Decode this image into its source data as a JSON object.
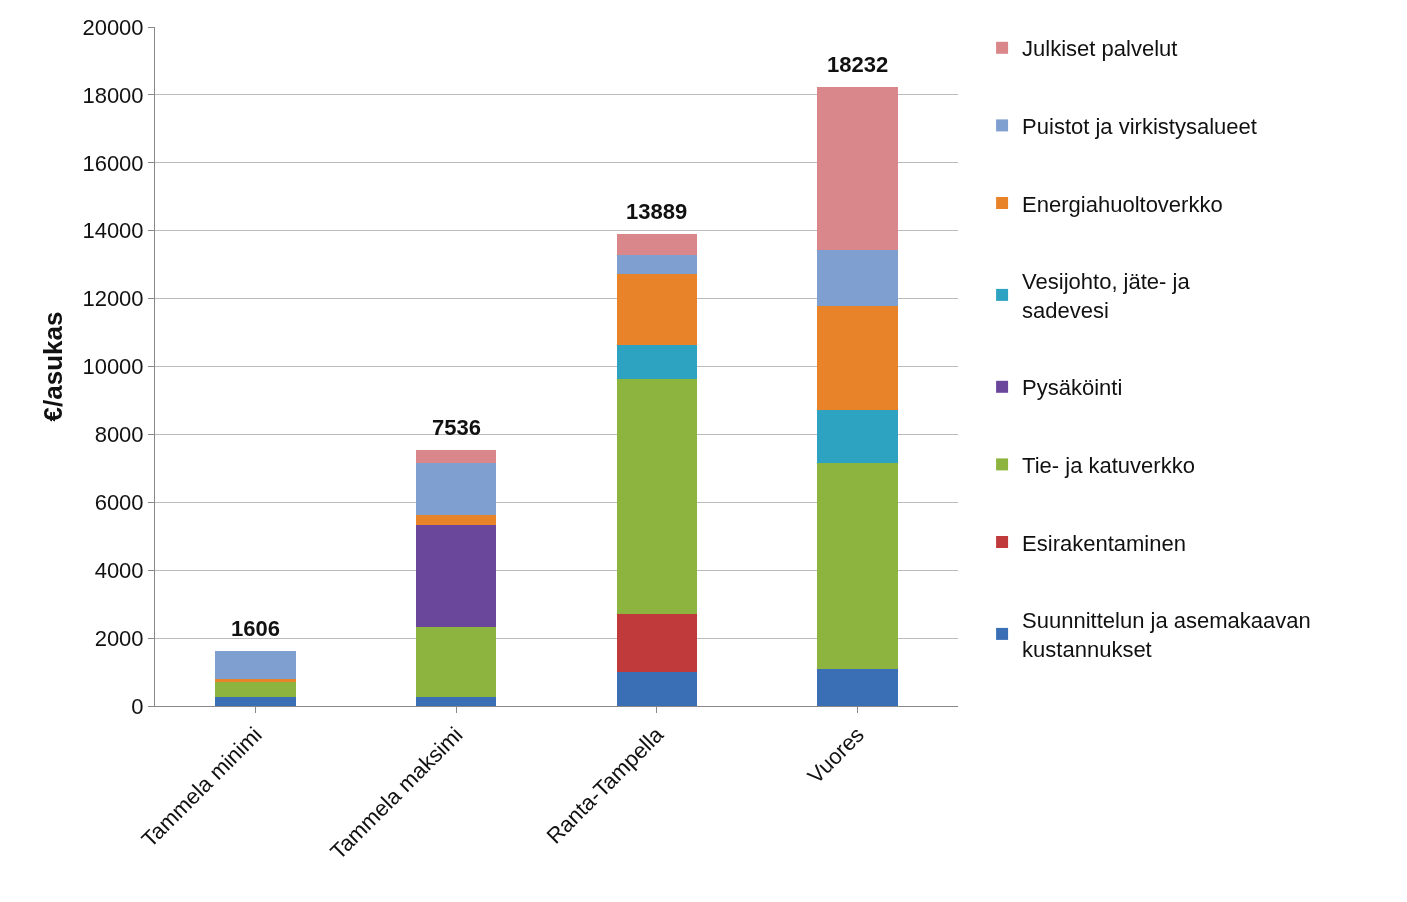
{
  "chart_data": {
    "type": "bar",
    "stacked": true,
    "ylabel": "€/asukas",
    "categories": [
      "Tammela minimi",
      "Tammela maksimi",
      "Ranta-Tampella",
      "Vuores"
    ],
    "series": [
      {
        "name": "Suunnittelun ja asemakaavan kustannukset",
        "color": "#3a6fb5",
        "values": [
          270,
          270,
          1000,
          1100
        ]
      },
      {
        "name": "Esirakentaminen",
        "color": "#c0393b",
        "values": [
          0,
          0,
          1700,
          0
        ]
      },
      {
        "name": "Tie- ja katuverkko",
        "color": "#8db43e",
        "values": [
          450,
          2047,
          6920,
          6070
        ]
      },
      {
        "name": "Pysäköinti",
        "color": "#6a479a",
        "values": [
          0,
          3020,
          0,
          0
        ]
      },
      {
        "name": "Vesijohto, jäte- ja sadevesi",
        "color": "#2ea3c1",
        "values": [
          0,
          0,
          1010,
          1550
        ]
      },
      {
        "name": "Energiahuoltoverkko",
        "color": "#e8832a",
        "values": [
          80,
          293,
          2100,
          3070
        ]
      },
      {
        "name": "Puistot ja virkistysalueet",
        "color": "#7f9fd0",
        "values": [
          806,
          1525,
          550,
          1650
        ]
      },
      {
        "name": "Julkiset palvelut",
        "color": "#d9878a",
        "values": [
          0,
          381,
          609,
          4792
        ]
      }
    ],
    "totals": [
      "1606",
      "7536",
      "13889",
      "18232"
    ],
    "ylim": [
      0,
      20000
    ],
    "yticks": [
      0,
      2000,
      4000,
      6000,
      8000,
      10000,
      12000,
      14000,
      16000,
      18000,
      20000
    ],
    "grid": "y",
    "legend": "right"
  }
}
